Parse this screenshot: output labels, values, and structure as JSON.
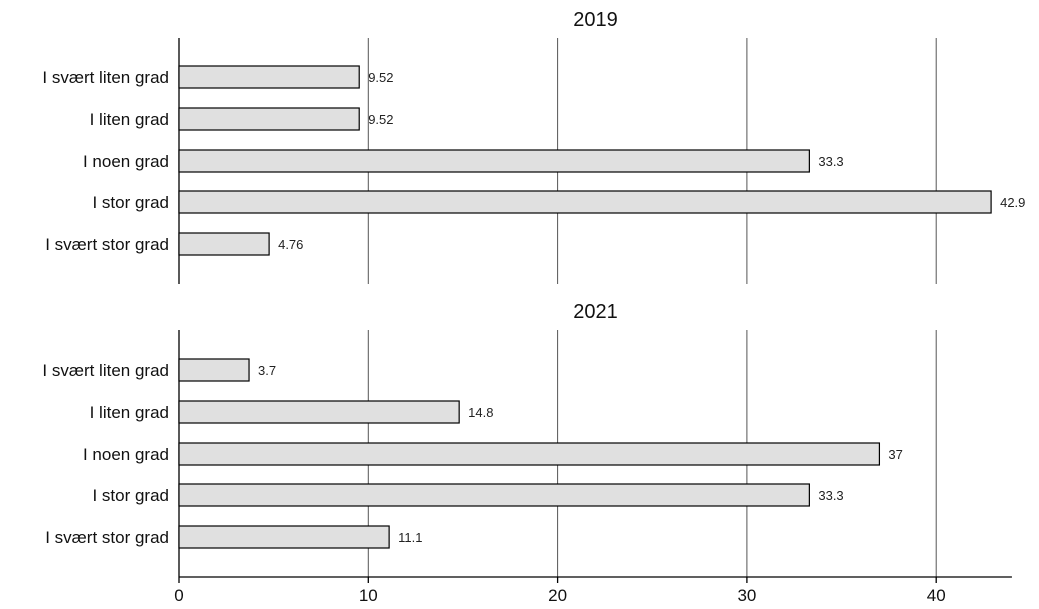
{
  "chart_data": {
    "type": "bar",
    "orientation": "horizontal",
    "xlim": [
      0,
      44
    ],
    "xticks": [
      0,
      10,
      20,
      30,
      40
    ],
    "grid": true,
    "bar_color": "#e0e0e0",
    "panels": [
      {
        "title": "2019",
        "categories": [
          "I svært liten grad",
          "I liten grad",
          "I noen grad",
          "I stor grad",
          "I svært stor grad"
        ],
        "values": [
          9.52,
          9.52,
          33.3,
          42.9,
          4.76
        ],
        "value_labels": [
          "9.52",
          "9.52",
          "33.3",
          "42.9",
          "4.76"
        ]
      },
      {
        "title": "2021",
        "categories": [
          "I svært liten grad",
          "I liten grad",
          "I noen grad",
          "I stor grad",
          "I svært stor grad"
        ],
        "values": [
          3.7,
          14.8,
          37,
          33.3,
          11.1
        ],
        "value_labels": [
          "3.7",
          "14.8",
          "37",
          "33.3",
          "11.1"
        ]
      }
    ]
  }
}
